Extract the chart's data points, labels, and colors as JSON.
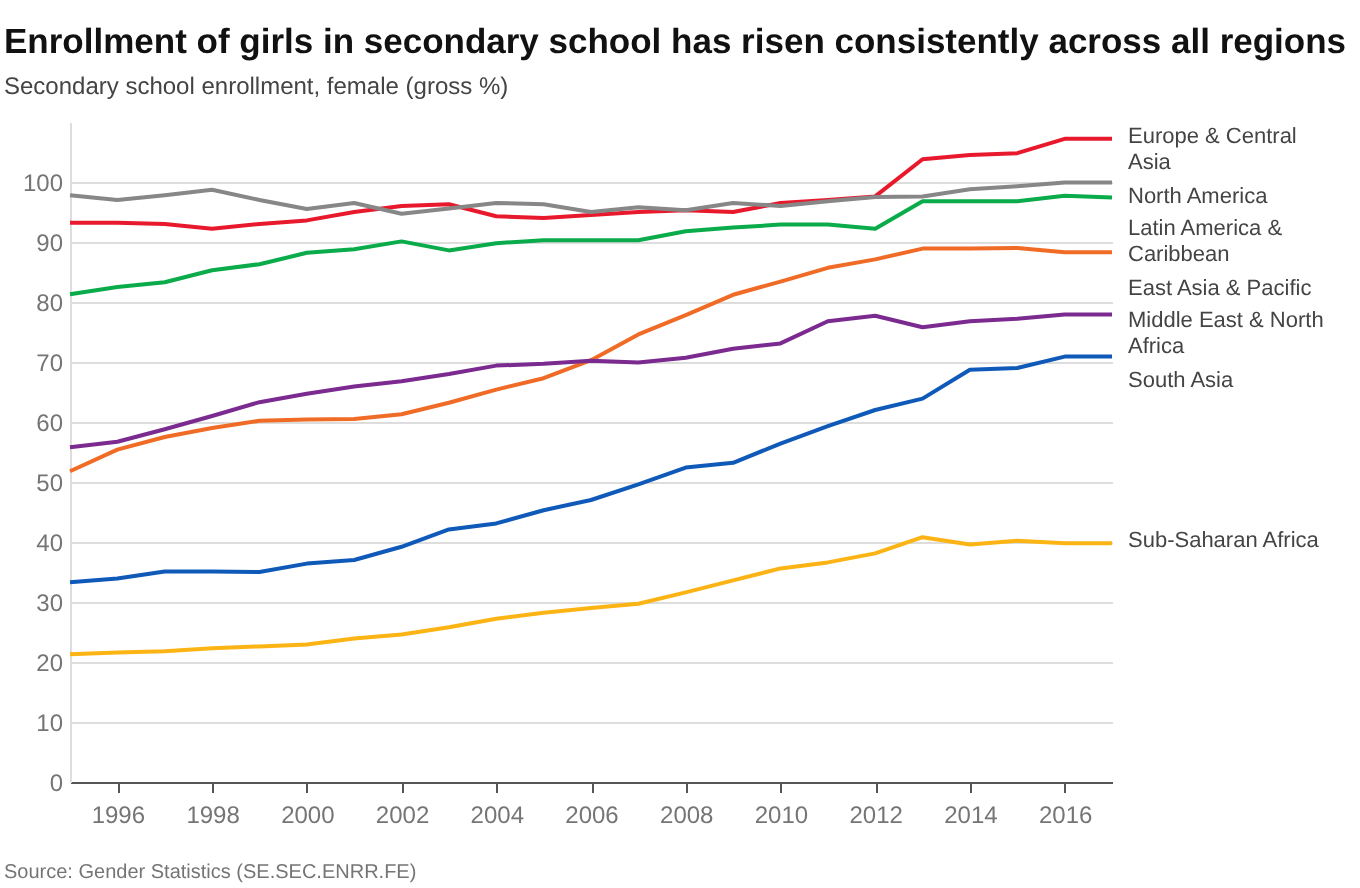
{
  "chart_data": {
    "type": "line",
    "title": "Enrollment of girls in secondary school has risen consistently across all regions",
    "subtitle": "Secondary school enrollment, female (gross %)",
    "x": [
      1995,
      1996,
      1997,
      1998,
      1999,
      2000,
      2001,
      2002,
      2003,
      2004,
      2005,
      2006,
      2007,
      2008,
      2009,
      2010,
      2011,
      2012,
      2013,
      2014,
      2015,
      2016,
      2017
    ],
    "series": [
      {
        "name": "Europe & Central Asia",
        "color": "#e8192c",
        "values": [
          93.2,
          93.2,
          93.0,
          92.2,
          93.0,
          93.6,
          95.0,
          96.0,
          96.3,
          94.3,
          94.0,
          94.5,
          95.0,
          95.3,
          95.0,
          96.5,
          97.0,
          97.6,
          103.8,
          104.5,
          104.8,
          107.2,
          107.2
        ]
      },
      {
        "name": "North America",
        "color": "#878787",
        "values": [
          97.8,
          97.0,
          97.8,
          98.7,
          97.0,
          95.5,
          96.5,
          94.7,
          95.6,
          96.5,
          96.3,
          95.0,
          95.8,
          95.3,
          96.5,
          96.0,
          96.8,
          97.5,
          97.6,
          98.8,
          99.3,
          99.9,
          99.9
        ]
      },
      {
        "name": "Latin America & Caribbean",
        "color": "#0aab4a",
        "values": [
          81.3,
          82.5,
          83.3,
          85.3,
          86.3,
          88.2,
          88.8,
          90.1,
          88.6,
          89.8,
          90.3,
          90.3,
          90.3,
          91.8,
          92.4,
          92.9,
          92.9,
          92.2,
          96.8,
          96.8,
          96.8,
          97.7,
          97.4
        ]
      },
      {
        "name": "East Asia & Pacific",
        "color": "#f06b26",
        "values": [
          51.8,
          55.4,
          57.5,
          59.0,
          60.2,
          60.4,
          60.5,
          61.3,
          63.2,
          65.4,
          67.3,
          70.3,
          74.6,
          77.8,
          81.2,
          83.4,
          85.7,
          87.1,
          88.9,
          88.9,
          89.0,
          88.3,
          88.3
        ]
      },
      {
        "name": "Middle East & North Africa",
        "color": "#7b2a90",
        "values": [
          55.8,
          56.7,
          58.8,
          61.0,
          63.3,
          64.7,
          65.9,
          66.8,
          68.0,
          69.4,
          69.7,
          70.2,
          69.9,
          70.7,
          72.2,
          73.1,
          76.8,
          77.7,
          75.8,
          76.8,
          77.2,
          77.9,
          77.9
        ]
      },
      {
        "name": "South Asia",
        "color": "#0f5ab8",
        "values": [
          33.3,
          33.9,
          35.1,
          35.1,
          35.0,
          36.4,
          37.0,
          39.2,
          42.1,
          43.1,
          45.3,
          47.0,
          49.6,
          52.4,
          53.2,
          56.4,
          59.3,
          62.0,
          63.9,
          68.7,
          69.0,
          70.9,
          70.9
        ]
      },
      {
        "name": "Sub-Saharan Africa",
        "color": "#fcb415",
        "values": [
          21.3,
          21.6,
          21.8,
          22.3,
          22.6,
          22.9,
          23.9,
          24.6,
          25.8,
          27.2,
          28.2,
          29.0,
          29.7,
          31.6,
          33.6,
          35.6,
          36.6,
          38.1,
          40.8,
          39.6,
          40.2,
          39.8,
          39.8
        ]
      }
    ],
    "xlim": [
      1995,
      2017
    ],
    "xticks": [
      1996,
      1998,
      2000,
      2002,
      2004,
      2006,
      2008,
      2010,
      2012,
      2014,
      2016
    ],
    "ylim": [
      0,
      110
    ],
    "yticks": [
      0,
      10,
      20,
      30,
      40,
      50,
      60,
      70,
      80,
      90,
      100
    ],
    "grid": "y",
    "legend": false,
    "marker": "none",
    "line_style": "solid",
    "annotations": [
      "Source: Gender Statistics (SE.SEC.ENRR.FE)"
    ]
  }
}
